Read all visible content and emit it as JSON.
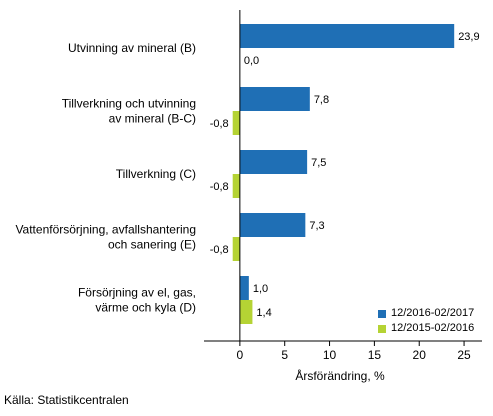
{
  "chart_data": {
    "type": "bar",
    "orientation": "horizontal",
    "categories": [
      [
        "Utvinning av mineral (B)"
      ],
      [
        "Tillverkning och utvinning",
        "av mineral (B-C)"
      ],
      [
        "Tillverkning (C)"
      ],
      [
        "Vattenförsörjning, avfallshantering",
        "och sanering (E)"
      ],
      [
        "Försörjning av el, gas,",
        "värme och kyla (D)"
      ]
    ],
    "series": [
      {
        "name": "12/2016-02/2017",
        "color": "#1f6fb5",
        "values": [
          23.9,
          7.8,
          7.5,
          7.3,
          1.0
        ],
        "labels": [
          "23,9",
          "7,8",
          "7,5",
          "7,3",
          "1,0"
        ]
      },
      {
        "name": "12/2015-02/2016",
        "color": "#b5d334",
        "values": [
          0.0,
          -0.8,
          -0.8,
          -0.8,
          1.4
        ],
        "labels": [
          "0,0",
          "-0,8",
          "-0,8",
          "-0,8",
          "1,4"
        ]
      }
    ],
    "xlabel": "Årsförändring, %",
    "xlim": [
      -4,
      27
    ],
    "xticks": [
      0,
      5,
      10,
      15,
      20,
      25
    ],
    "legend_position": "bottom-right",
    "grid": false
  },
  "source": "Källa: Statistikcentralen"
}
